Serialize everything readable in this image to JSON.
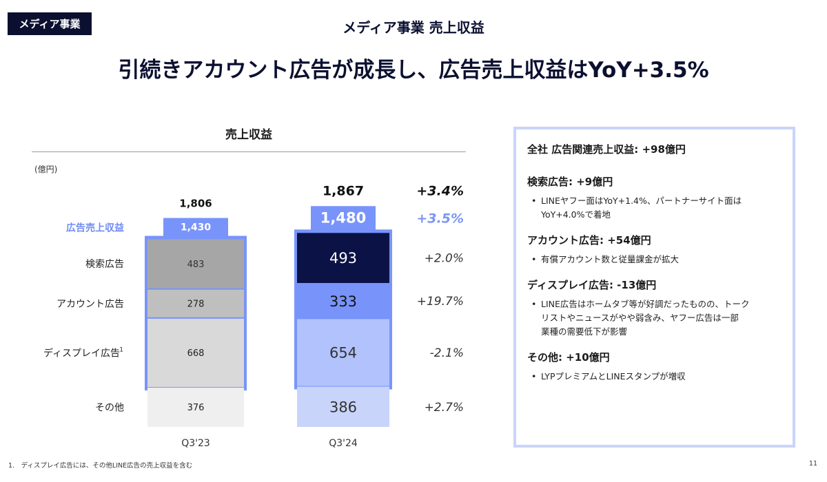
{
  "header": {
    "badge": "メディア事業",
    "section_title": "メディア事業 売上収益",
    "headline": "引続きアカウント広告が成長し、広告売上収益はYoY+3.5%"
  },
  "chart_data": {
    "type": "bar",
    "title": "売上収益",
    "unit_label": "(億円)",
    "categories": [
      "Q3'23",
      "Q3'24"
    ],
    "totals": [
      1806,
      1867
    ],
    "total_labels": [
      "1,806",
      "1,867"
    ],
    "ad_revenue_label": "広告売上収益",
    "ad_revenue": [
      1430,
      1480
    ],
    "ad_revenue_labels": [
      "1,430",
      "1,480"
    ],
    "series": [
      {
        "name": "検索広告",
        "values": [
          483,
          493
        ],
        "colors": [
          "#a6a6a6",
          "#0b1245"
        ],
        "text_colors": [
          "#333333",
          "#ffffff"
        ]
      },
      {
        "name": "アカウント広告",
        "values": [
          278,
          333
        ],
        "colors": [
          "#bfbfbf",
          "#7894fb"
        ],
        "text_colors": [
          "#222222",
          "#111111"
        ]
      },
      {
        "name": "ディスプレイ広告",
        "values": [
          668,
          654
        ],
        "colors": [
          "#d9d9d9",
          "#b1c2fc"
        ],
        "text_colors": [
          "#222222",
          "#333333"
        ]
      },
      {
        "name": "その他",
        "values": [
          376,
          386
        ],
        "colors": [
          "#efefef",
          "#c9d4fa"
        ],
        "text_colors": [
          "#222222",
          "#333333"
        ]
      }
    ],
    "display_footnote_mark": "1",
    "yoy": {
      "total": "+3.4%",
      "ad_revenue": "+3.5%",
      "series": [
        "+2.0%",
        "+19.7%",
        "-2.1%",
        "+2.7%"
      ]
    },
    "colors": {
      "ad_frame": "#7894fb",
      "ad_label": "#6f8cf5",
      "ad_yoy": "#7c95f6"
    }
  },
  "info": {
    "total": "全社 広告関連売上収益: +98億円",
    "categories": [
      {
        "title": "検索広告: +9億円",
        "bullets": [
          "LINEヤフー面はYoY+1.4%、パートナーサイト面は",
          "YoY+4.0%で着地"
        ]
      },
      {
        "title": "アカウント広告: +54億円",
        "bullets": [
          "有償アカウント数と従量課金が拡大"
        ]
      },
      {
        "title": "ディスプレイ広告: -13億円",
        "bullets": [
          "LINE広告はホームタブ等が好調だったものの、トーク",
          "リストやニュースがやや弱含み、ヤフー広告は一部",
          "業種の需要低下が影響"
        ]
      },
      {
        "title": "その他: +10億円",
        "bullets": [
          "LYPプレミアムとLINEスタンプが増収"
        ]
      }
    ]
  },
  "footer": {
    "footnote": "1.　ディスプレイ広告には、その他LINE広告の売上収益を含む",
    "page_number": "11"
  }
}
